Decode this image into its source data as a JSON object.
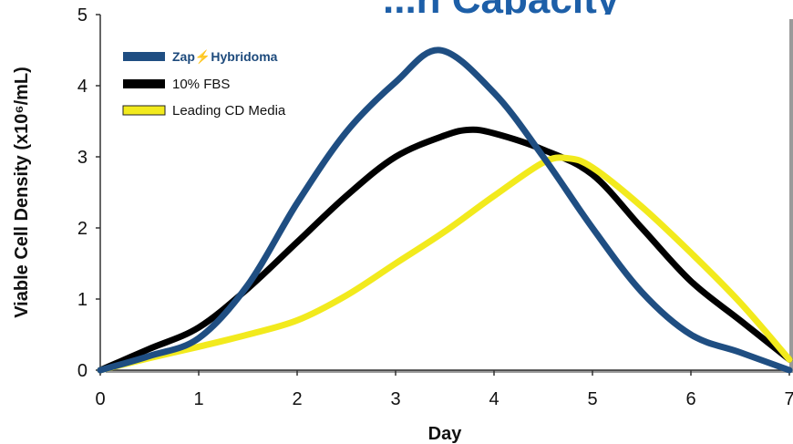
{
  "chart_data": {
    "type": "line",
    "title_fragment": "...n Capacity",
    "xlabel": "Day",
    "ylabel": "Viable Cell Density (x10⁶/mL)",
    "xlim": [
      0,
      7
    ],
    "ylim": [
      0,
      5
    ],
    "x_ticks": [
      "0",
      "1",
      "2",
      "3",
      "4",
      "5",
      "6",
      "7"
    ],
    "y_ticks": [
      "0",
      "1",
      "2",
      "3",
      "4",
      "5"
    ],
    "grid": false,
    "legend_position": "top-left",
    "series": [
      {
        "name": "Zap⚡Hybridoma",
        "brand_zap": "Zap",
        "brand_rest": "Hybridoma",
        "color": "#1f4e82",
        "x": [
          0,
          0.5,
          1,
          1.5,
          2,
          2.5,
          3,
          3.45,
          4,
          4.5,
          5,
          5.5,
          6,
          6.5,
          7
        ],
        "y": [
          0,
          0.2,
          0.45,
          1.2,
          2.35,
          3.35,
          4.05,
          4.5,
          3.9,
          3.0,
          2.0,
          1.1,
          0.5,
          0.25,
          0.0
        ]
      },
      {
        "name": "10% FBS",
        "color": "#000000",
        "x": [
          0,
          0.5,
          1,
          1.5,
          2,
          2.5,
          3,
          3.5,
          3.75,
          4,
          4.5,
          5,
          5.5,
          6,
          6.5,
          7
        ],
        "y": [
          0,
          0.3,
          0.6,
          1.15,
          1.8,
          2.45,
          3.0,
          3.3,
          3.38,
          3.33,
          3.1,
          2.75,
          2.0,
          1.25,
          0.7,
          0.15
        ]
      },
      {
        "name": "Leading CD Media",
        "color": "#f2ea1d",
        "x": [
          0,
          0.5,
          1,
          1.5,
          2,
          2.5,
          3,
          3.5,
          4,
          4.5,
          4.75,
          5,
          5.5,
          6,
          6.5,
          7
        ],
        "y": [
          0,
          0.17,
          0.33,
          0.5,
          0.7,
          1.05,
          1.5,
          1.95,
          2.45,
          2.92,
          2.98,
          2.85,
          2.3,
          1.65,
          0.95,
          0.15
        ]
      }
    ]
  }
}
